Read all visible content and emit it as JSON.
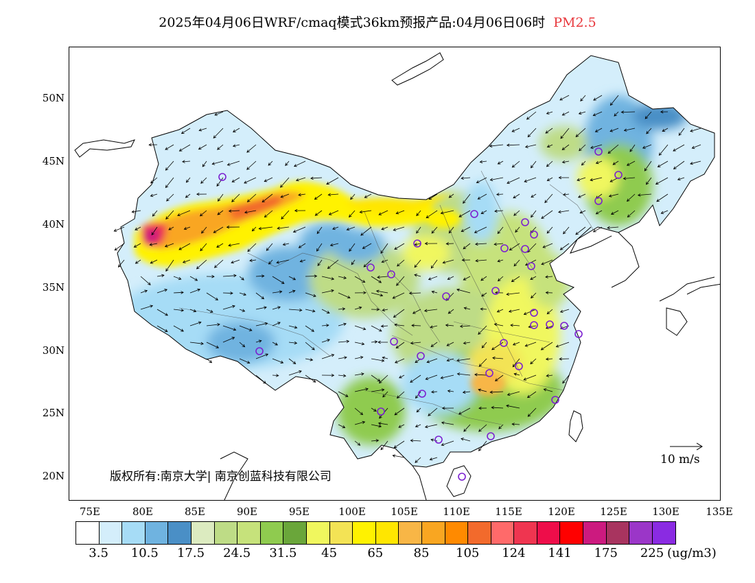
{
  "title": {
    "text": "2025年04月06日WRF/cmaq模式36km预报产品:04月06日06时",
    "variable": "PM2.5",
    "variable_color": "#e8383d"
  },
  "map": {
    "lat_labels": [
      "50N",
      "45N",
      "40N",
      "35N",
      "30N",
      "25N",
      "20N"
    ],
    "lon_labels": [
      "75E",
      "80E",
      "85E",
      "90E",
      "95E",
      "100E",
      "105E",
      "110E",
      "115E",
      "120E",
      "125E",
      "130E",
      "135E"
    ],
    "copyright": "版权所有:南京大学| 南京创蓝科技有限公司",
    "wind_reference": "10 m/s",
    "station_marker_color": "#7b1fd0"
  },
  "colorbar": {
    "colors": [
      "#ffffff",
      "#d4eefb",
      "#a6dcf6",
      "#6fb3e0",
      "#4a8fc6",
      "#dcebc0",
      "#bedc86",
      "#c6e27b",
      "#8fcb4f",
      "#6aa63a",
      "#f0f75e",
      "#f3e355",
      "#fff200",
      "#ffe600",
      "#f8b646",
      "#f9a621",
      "#ff8a00",
      "#f26a2c",
      "#ff6a6a",
      "#ef3550",
      "#ee0d4a",
      "#ff0000",
      "#cc1a7f",
      "#a8345f",
      "#9b36c8",
      "#8a2be2"
    ],
    "labels": [
      "3.5",
      "10.5",
      "17.5",
      "24.5",
      "31.5",
      "45",
      "65",
      "85",
      "105",
      "124",
      "141",
      "175",
      "225"
    ],
    "unit": "(ug/m3)"
  }
}
